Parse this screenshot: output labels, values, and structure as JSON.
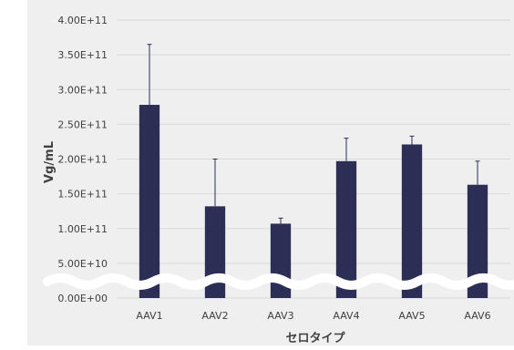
{
  "chart_data": {
    "type": "bar",
    "title": "",
    "xlabel": "セロタイプ",
    "ylabel": "Vg/mL",
    "categories": [
      "AAV1",
      "AAV2",
      "AAV3",
      "AAV4",
      "AAV5",
      "AAV6"
    ],
    "values": [
      278000000000.0,
      132000000000.0,
      107000000000.0,
      197000000000.0,
      221000000000.0,
      163000000000.0
    ],
    "error_upper": [
      365000000000.0,
      200000000000.0,
      115000000000.0,
      230000000000.0,
      233000000000.0,
      197000000000.0
    ],
    "ylim": [
      0,
      400000000000.0
    ],
    "yticks": [
      0,
      50000000000.0,
      100000000000.0,
      150000000000.0,
      200000000000.0,
      250000000000.0,
      300000000000.0,
      350000000000.0,
      400000000000.0
    ],
    "ytick_labels": [
      "0.00E+00",
      "5.00E+10",
      "1.00E+11",
      "1.50E+11",
      "2.00E+11",
      "2.50E+11",
      "3.00E+11",
      "3.50E+11",
      "4.00E+11"
    ],
    "grid": true,
    "axis_break": "between 0.00E+00 and 5.00E+10",
    "colors": {
      "bar": "#2c2e55",
      "background": "#efefef",
      "grid": "#d9d9d9",
      "text": "#404040"
    }
  }
}
